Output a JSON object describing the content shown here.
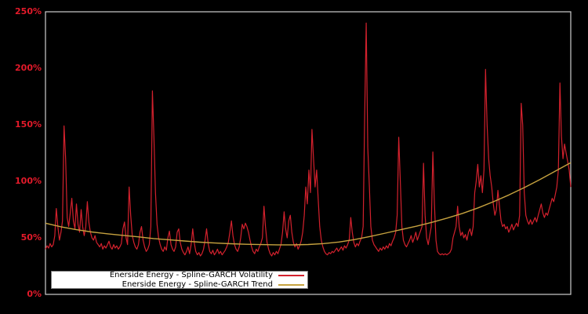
{
  "colors": {
    "background": "#000000",
    "frame": "#cfcfcf",
    "volatility": "#d3212d",
    "trend": "#c6a23f",
    "tick_label": "#e31a2a",
    "legend_bg": "#ffffff",
    "legend_border": "#7f7f7f"
  },
  "legend": {
    "items": [
      {
        "label": "Enerside Energy - Spline-GARCH Volatility",
        "color_key": "volatility"
      },
      {
        "label": "Enerside Energy - Spline-GARCH Trend",
        "color_key": "trend"
      }
    ]
  },
  "chart_data": {
    "type": "line",
    "title": "",
    "xlabel": "",
    "ylabel": "",
    "unit": "%",
    "grid": false,
    "legend_position": "lower-left",
    "x_axis": {
      "labels_visible": false
    },
    "ylim": [
      0,
      250
    ],
    "yticks": [
      {
        "value": 0,
        "label": "0%"
      },
      {
        "value": 50,
        "label": "50%"
      },
      {
        "value": 100,
        "label": "100%"
      },
      {
        "value": 150,
        "label": "150%"
      },
      {
        "value": 200,
        "label": "200%"
      },
      {
        "value": 250,
        "label": "250%"
      }
    ],
    "series": [
      {
        "name": "Enerside Energy - Spline-GARCH Volatility",
        "color_key": "volatility",
        "values": [
          40,
          43,
          41,
          45,
          42,
          44,
          52,
          76,
          60,
          48,
          55,
          65,
          149,
          120,
          68,
          60,
          72,
          85,
          65,
          58,
          80,
          62,
          55,
          75,
          60,
          52,
          60,
          82,
          64,
          55,
          50,
          48,
          52,
          46,
          44,
          42,
          45,
          40,
          43,
          41,
          44,
          47,
          42,
          40,
          44,
          41,
          43,
          40,
          42,
          45,
          58,
          64,
          50,
          44,
          95,
          70,
          52,
          46,
          42,
          40,
          44,
          55,
          60,
          48,
          42,
          38,
          40,
          44,
          60,
          180,
          140,
          90,
          62,
          50,
          44,
          40,
          38,
          42,
          39,
          50,
          56,
          44,
          40,
          38,
          42,
          55,
          58,
          46,
          40,
          37,
          35,
          38,
          42,
          36,
          44,
          58,
          46,
          38,
          35,
          37,
          34,
          36,
          40,
          48,
          58,
          45,
          38,
          36,
          39,
          35,
          37,
          40,
          36,
          38,
          35,
          37,
          39,
          42,
          46,
          55,
          65,
          52,
          44,
          40,
          38,
          42,
          50,
          62,
          58,
          63,
          60,
          55,
          48,
          42,
          38,
          36,
          40,
          38,
          42,
          45,
          50,
          78,
          60,
          46,
          40,
          36,
          34,
          37,
          35,
          38,
          36,
          40,
          44,
          55,
          73,
          58,
          50,
          65,
          70,
          55,
          46,
          42,
          45,
          40,
          43,
          47,
          55,
          70,
          95,
          80,
          110,
          90,
          146,
          120,
          95,
          110,
          85,
          60,
          48,
          42,
          38,
          36,
          35,
          37,
          36,
          38,
          37,
          39,
          41,
          38,
          40,
          42,
          39,
          43,
          41,
          44,
          48,
          68,
          55,
          46,
          42,
          45,
          43,
          47,
          50,
          60,
          156,
          240,
          130,
          96,
          60,
          48,
          44,
          42,
          40,
          38,
          41,
          39,
          42,
          40,
          43,
          41,
          45,
          43,
          47,
          50,
          55,
          70,
          139,
          100,
          60,
          48,
          44,
          42,
          45,
          48,
          52,
          46,
          50,
          55,
          48,
          52,
          56,
          60,
          116,
          70,
          50,
          44,
          52,
          60,
          126,
          80,
          48,
          38,
          36,
          35,
          36,
          35,
          36,
          35,
          36,
          37,
          40,
          50,
          55,
          60,
          78,
          60,
          52,
          55,
          50,
          53,
          48,
          55,
          58,
          52,
          60,
          90,
          100,
          115,
          95,
          105,
          90,
          110,
          199,
          150,
          120,
          105,
          95,
          80,
          70,
          75,
          92,
          78,
          65,
          60,
          62,
          58,
          60,
          55,
          58,
          62,
          57,
          60,
          63,
          60,
          70,
          169,
          150,
          90,
          70,
          65,
          62,
          66,
          62,
          65,
          68,
          64,
          70,
          75,
          80,
          72,
          68,
          72,
          70,
          75,
          80,
          85,
          82,
          88,
          95,
          110,
          187,
          140,
          120,
          133,
          125,
          118,
          110,
          95
        ]
      },
      {
        "name": "Enerside Energy - Spline-GARCH Trend",
        "color_key": "trend",
        "values": [
          63,
          59.8,
          57.2,
          55.2,
          53.6,
          52.2,
          50.9,
          49.4,
          48.3,
          47.2,
          46.2,
          45.4,
          44.8,
          44.3,
          44,
          43.8,
          43.8,
          44.1,
          44.9,
          46.3,
          48.5,
          51.2,
          54.2,
          57.2,
          60.3,
          63.7,
          67.5,
          71.7,
          76.5,
          82,
          88,
          94.5,
          101.5,
          109,
          116.5
        ]
      }
    ]
  }
}
